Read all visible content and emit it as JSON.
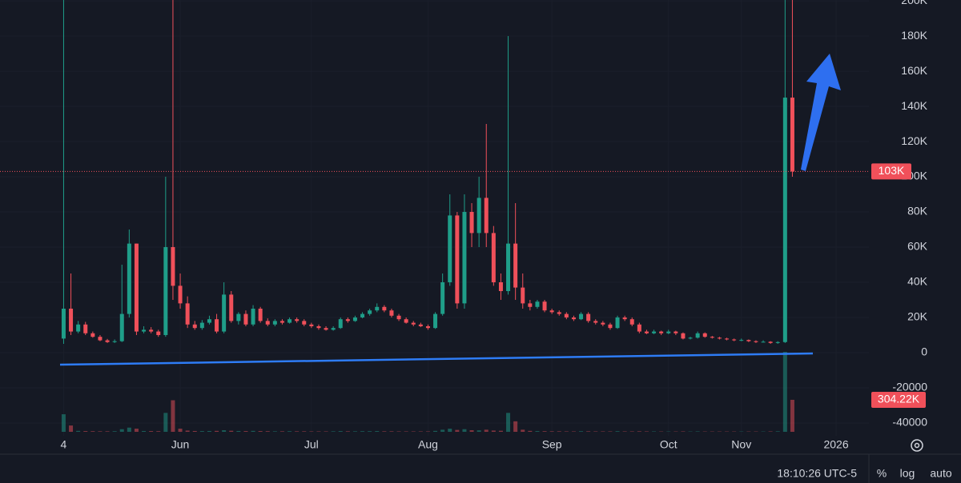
{
  "chart_data": {
    "type": "candlestick",
    "categories": [
      "4",
      null,
      null,
      null,
      null,
      null,
      null,
      null,
      null,
      null,
      null,
      null,
      null,
      null,
      null,
      null,
      "Jun",
      null,
      null,
      null,
      null,
      null,
      null,
      null,
      null,
      null,
      null,
      null,
      null,
      null,
      null,
      null,
      null,
      null,
      "Jul",
      null,
      null,
      null,
      null,
      null,
      null,
      null,
      null,
      null,
      null,
      null,
      null,
      null,
      null,
      null,
      "Aug",
      null,
      null,
      null,
      null,
      null,
      null,
      null,
      null,
      null,
      null,
      null,
      null,
      null,
      null,
      null,
      null,
      "Sep",
      null,
      null,
      null,
      null,
      null,
      null,
      null,
      null,
      null,
      null,
      null,
      null,
      null,
      null,
      null,
      "Oct",
      null,
      null,
      null,
      null,
      null,
      null,
      null,
      null,
      null,
      "Nov",
      null,
      null,
      null,
      null,
      null,
      null,
      null,
      null,
      null,
      null,
      null,
      null,
      "2026",
      null,
      null,
      null,
      null
    ],
    "open": [
      8000,
      25000,
      12000,
      16000,
      11000,
      9000,
      7000,
      6000,
      6500,
      22000,
      62000,
      12000,
      13000,
      12000,
      10000,
      60000,
      38000,
      28000,
      16000,
      14000,
      17000,
      19000,
      12000,
      33000,
      18000,
      22000,
      16000,
      25000,
      18000,
      16000,
      18000,
      17000,
      19000,
      18000,
      16000,
      15000,
      14000,
      13000,
      14000,
      19000,
      18000,
      20000,
      22000,
      24000,
      26000,
      24000,
      21000,
      19000,
      17000,
      16000,
      15000,
      14000,
      22000,
      40000,
      78000,
      28000,
      80000,
      68000,
      88000,
      68000,
      40000,
      35000,
      62000,
      37000,
      28000,
      26000,
      29000,
      24000,
      23000,
      22000,
      20000,
      19000,
      22000,
      18000,
      17000,
      16000,
      14000,
      20000,
      19000,
      16000,
      12000,
      11000,
      12000,
      11000,
      12000,
      11000,
      8000,
      8500,
      11000,
      9000,
      8500,
      8000,
      7500,
      7000,
      7200,
      6500,
      6000,
      6200,
      5500,
      6000,
      145000,
      null,
      null,
      null,
      null,
      null,
      null,
      null,
      null,
      null,
      null
    ],
    "high": [
      200500,
      45000,
      18000,
      17500,
      12000,
      10000,
      7800,
      7500,
      50000,
      70000,
      62000,
      15000,
      14500,
      13000,
      100000,
      200500,
      45000,
      32000,
      18000,
      18500,
      21000,
      22000,
      40000,
      35000,
      23000,
      24000,
      27000,
      26000,
      19500,
      19000,
      19000,
      20000,
      20000,
      19000,
      17000,
      16000,
      15000,
      15000,
      20000,
      20000,
      21000,
      23000,
      25000,
      28000,
      27000,
      25000,
      22000,
      20000,
      18000,
      17000,
      16000,
      23000,
      45000,
      90000,
      80000,
      90000,
      85000,
      100000,
      130000,
      72000,
      45000,
      180000,
      85000,
      45000,
      30000,
      30000,
      30000,
      25000,
      24000,
      23000,
      21000,
      23000,
      23000,
      19000,
      18000,
      17000,
      21000,
      21000,
      20000,
      17000,
      13000,
      13000,
      12500,
      13000,
      12500,
      11500,
      9000,
      12000,
      11500,
      9500,
      9000,
      8500,
      8000,
      8000,
      7500,
      7000,
      7000,
      6500,
      6500,
      200500,
      200500,
      null,
      null,
      null,
      null,
      null,
      null,
      null,
      null,
      null,
      null
    ],
    "low": [
      5000,
      10000,
      11000,
      10000,
      8500,
      6500,
      5500,
      5500,
      6000,
      20000,
      10000,
      11000,
      11000,
      9000,
      9000,
      30000,
      25000,
      14000,
      13000,
      13000,
      16000,
      11000,
      11000,
      17000,
      16000,
      15000,
      15000,
      17000,
      15000,
      15000,
      16000,
      16500,
      17000,
      15000,
      14000,
      13000,
      12500,
      12500,
      13500,
      17000,
      17500,
      19500,
      21000,
      23000,
      23000,
      20000,
      18000,
      16500,
      15000,
      14500,
      13000,
      13500,
      21000,
      38000,
      25000,
      25000,
      60000,
      60000,
      60000,
      38000,
      30000,
      33000,
      30000,
      25000,
      24000,
      25000,
      23000,
      22000,
      21000,
      19000,
      18000,
      18500,
      17000,
      16000,
      15000,
      13000,
      13500,
      18000,
      15000,
      11000,
      10500,
      10500,
      10000,
      10500,
      10000,
      7500,
      7500,
      8000,
      8500,
      8000,
      7500,
      7000,
      6500,
      6500,
      6000,
      5500,
      5800,
      5000,
      5000,
      5500,
      100000,
      null,
      null,
      null,
      null,
      null,
      null,
      null,
      null,
      null,
      null
    ],
    "close": [
      25000,
      12000,
      16000,
      11000,
      9000,
      7000,
      6000,
      6500,
      22000,
      62000,
      12000,
      13000,
      12000,
      10000,
      60000,
      38000,
      28000,
      16000,
      14000,
      17000,
      19000,
      12000,
      33000,
      18000,
      22000,
      16000,
      25000,
      18000,
      16000,
      18000,
      17000,
      19000,
      18000,
      16000,
      15000,
      14000,
      13000,
      14000,
      19000,
      18000,
      20000,
      22000,
      24000,
      26000,
      24000,
      21000,
      19000,
      17000,
      16000,
      15000,
      14000,
      22000,
      40000,
      78000,
      28000,
      80000,
      68000,
      88000,
      68000,
      40000,
      35000,
      62000,
      37000,
      28000,
      26000,
      29000,
      24000,
      23000,
      22000,
      20000,
      19000,
      22000,
      18000,
      17000,
      16000,
      14000,
      20000,
      19000,
      16000,
      12000,
      11000,
      12000,
      11000,
      12000,
      11000,
      8000,
      8500,
      11000,
      9000,
      8500,
      8000,
      7500,
      7000,
      7200,
      6500,
      6000,
      6200,
      5500,
      6000,
      145000,
      103000,
      null,
      null,
      null,
      null,
      null,
      null,
      null,
      null,
      null,
      null
    ],
    "volume": [
      167000,
      60000,
      9000,
      7000,
      6000,
      5000,
      5000,
      6000,
      25000,
      40000,
      30000,
      8000,
      7000,
      6000,
      180000,
      300000,
      30000,
      12000,
      8000,
      7000,
      8000,
      9000,
      15000,
      10000,
      8000,
      7000,
      9000,
      7000,
      6000,
      5000,
      5000,
      6000,
      5000,
      5000,
      4000,
      4000,
      4000,
      5000,
      7000,
      5000,
      5000,
      6000,
      6000,
      7000,
      5000,
      5000,
      4000,
      4000,
      4000,
      4000,
      4000,
      9000,
      20000,
      30000,
      18000,
      25000,
      15000,
      14000,
      20000,
      12000,
      10000,
      180000,
      100000,
      20000,
      9000,
      7000,
      6000,
      5000,
      5000,
      4000,
      4000,
      6000,
      5000,
      4000,
      4000,
      4000,
      6000,
      4000,
      4000,
      5000,
      4000,
      4000,
      3000,
      3000,
      3000,
      4000,
      3000,
      4000,
      3000,
      3000,
      3000,
      3000,
      3000,
      3000,
      3000,
      3000,
      3000,
      4000,
      5000,
      760000,
      304220,
      null,
      null,
      null,
      null,
      null,
      null,
      null,
      null,
      null,
      null
    ],
    "volume_labels": [
      null,
      null,
      null,
      null,
      null,
      null,
      null,
      null,
      null,
      null,
      null,
      null,
      null,
      null,
      null,
      null,
      null,
      null,
      null,
      null,
      null,
      null,
      null,
      null,
      null,
      null,
      null,
      null,
      null,
      null,
      null,
      null,
      null,
      null,
      null,
      null,
      null,
      null,
      null,
      null,
      null,
      null,
      null,
      null,
      null,
      null,
      null,
      null,
      null,
      null,
      null,
      null,
      null,
      null,
      null,
      null,
      null,
      null,
      null,
      null,
      null,
      null,
      null,
      null,
      null,
      null,
      null,
      null,
      null,
      null,
      null,
      null,
      null,
      null,
      null,
      null,
      null,
      null,
      null,
      null,
      null,
      null,
      null,
      null,
      null,
      null,
      null,
      null,
      null,
      null,
      null,
      null,
      null,
      null,
      null,
      null,
      null,
      null,
      null,
      null,
      "304.22K",
      null,
      null,
      null,
      null,
      null,
      null,
      null,
      null,
      null,
      null
    ],
    "last_price": {
      "value": 103000,
      "label": "103K"
    },
    "up_color": "#1f9e89",
    "down_color": "#f0505a",
    "ylim": [
      -47300,
      200500
    ],
    "yticks": [
      {
        "value": 200000,
        "label": "200K"
      },
      {
        "value": 180000,
        "label": "180K"
      },
      {
        "value": 160000,
        "label": "160K"
      },
      {
        "value": 140000,
        "label": "140K"
      },
      {
        "value": 120000,
        "label": "120K"
      },
      {
        "value": 100000,
        "label": "100K"
      },
      {
        "value": 80000,
        "label": "80K"
      },
      {
        "value": 60000,
        "label": "60K"
      },
      {
        "value": 40000,
        "label": "40K"
      },
      {
        "value": 20000,
        "label": "20K"
      },
      0,
      -20000,
      -40000
    ],
    "grid": true,
    "status": {
      "time": "18:10:26 UTC-5",
      "percent": "%",
      "log": "log",
      "auto": "auto"
    }
  }
}
